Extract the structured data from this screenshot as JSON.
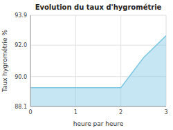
{
  "chart_data": {
    "type": "area",
    "title": "Evolution du taux d'hygrométrie",
    "xlabel": "heure par heure",
    "ylabel": "Taux hygrométrie %",
    "x": [
      0,
      0.5,
      1,
      1.5,
      2,
      2.5,
      3
    ],
    "values": [
      89.3,
      89.3,
      89.3,
      89.3,
      89.3,
      91.2,
      92.6
    ],
    "color": "#7ec8e3",
    "xlim": [
      0,
      3
    ],
    "ylim": [
      88.1,
      93.9
    ],
    "xticks": [
      0,
      1,
      2,
      3
    ],
    "yticks": [
      88.1,
      {
        "value": 90.0,
        "label": "90.0"
      },
      {
        "value": 92.0,
        "label": "92.0"
      },
      93.9
    ],
    "grid": true
  }
}
